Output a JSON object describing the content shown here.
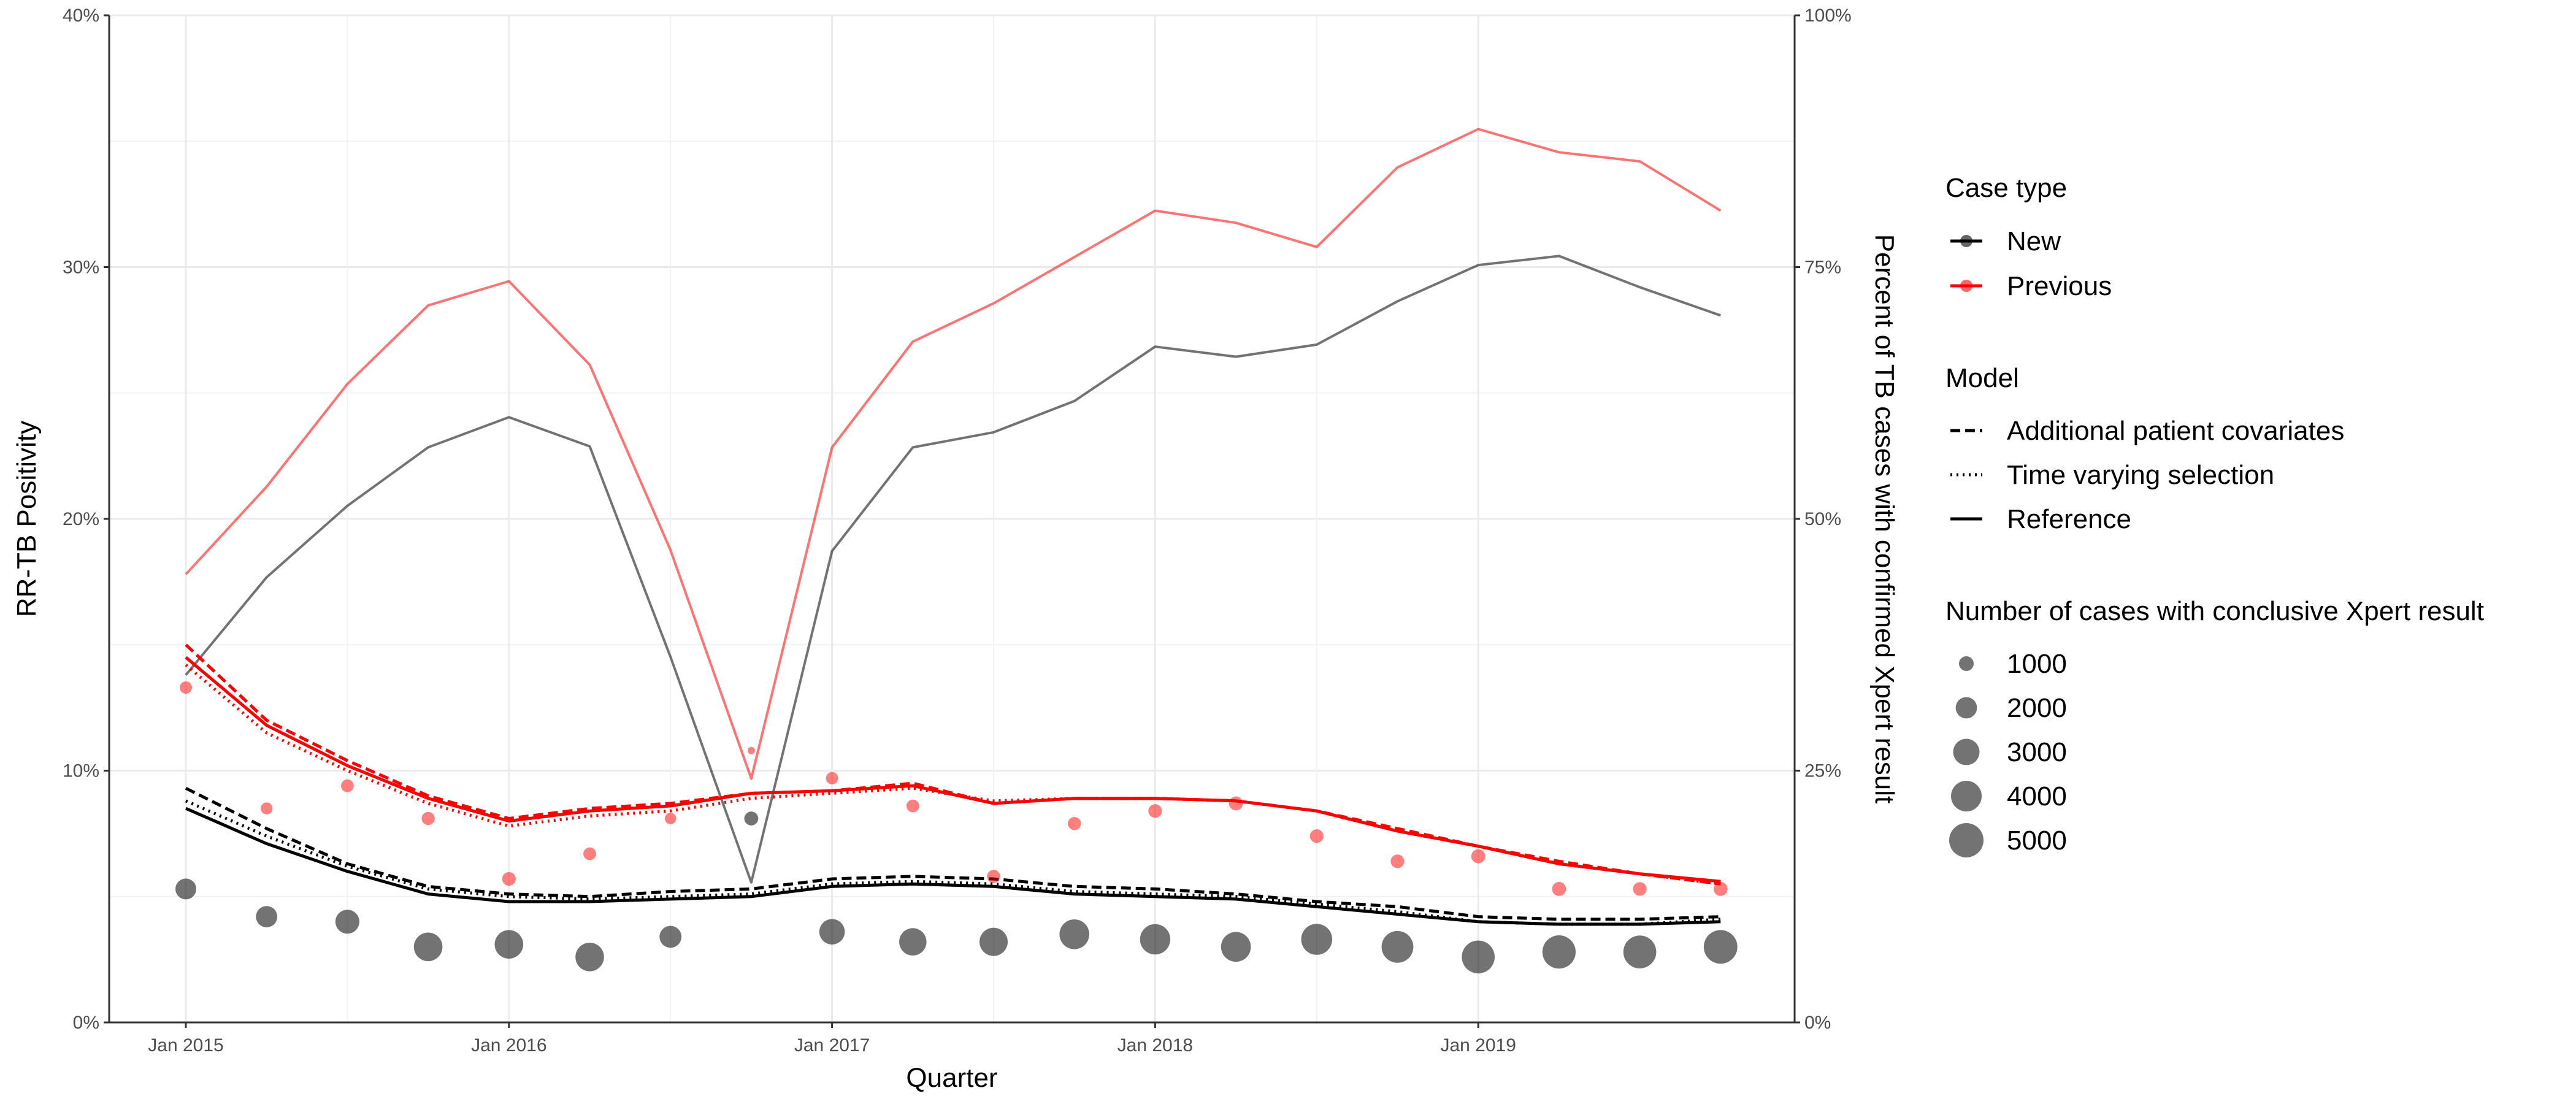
{
  "chart_data": {
    "type": "line",
    "xlabel": "Quarter",
    "ylabel": "RR-TB Positivity",
    "y2label": "Percent of TB cases with confirmed Xpert result",
    "ylim": [
      0,
      40
    ],
    "y2lim": [
      0,
      100
    ],
    "grid": true,
    "legend_position": "right",
    "x": [
      "2015-01",
      "2015-04",
      "2015-07",
      "2015-10",
      "2016-01",
      "2016-04",
      "2016-07",
      "2016-10",
      "2017-01",
      "2017-04",
      "2017-07",
      "2017-10",
      "2018-01",
      "2018-04",
      "2018-07",
      "2018-10",
      "2019-01",
      "2019-04",
      "2019-07",
      "2019-10"
    ],
    "x_ticks": [
      "Jan 2015",
      "Jan 2016",
      "Jan 2017",
      "Jan 2018",
      "Jan 2019"
    ],
    "y_ticks": [
      "0%",
      "10%",
      "20%",
      "30%",
      "40%"
    ],
    "y2_ticks": [
      "0%",
      "25%",
      "50%",
      "75%",
      "100%"
    ],
    "colors": {
      "New": "#000000",
      "Previous": "#ff0000"
    },
    "xpert_confirmed_percent": [
      {
        "name": "New",
        "values": [
          34.5,
          44.2,
          51.3,
          57.1,
          60.1,
          57.2,
          36.3,
          13.9,
          46.8,
          57.1,
          58.6,
          61.7,
          67.1,
          66.1,
          67.3,
          71.6,
          75.2,
          76.1,
          73.0,
          70.2
        ]
      },
      {
        "name": "Previous",
        "values": [
          44.5,
          53.2,
          63.4,
          71.2,
          73.6,
          65.3,
          46.9,
          24.2,
          57.1,
          67.6,
          71.4,
          76.0,
          80.6,
          79.4,
          77.0,
          84.9,
          88.7,
          86.4,
          85.5,
          80.6
        ]
      }
    ],
    "observed_positivity": [
      {
        "name": "New",
        "values": [
          5.3,
          4.2,
          4.0,
          3.0,
          3.1,
          2.6,
          3.4,
          8.1,
          3.6,
          3.2,
          3.2,
          3.5,
          3.3,
          3.0,
          3.3,
          3.0,
          2.6,
          2.8,
          2.8,
          3.0
        ],
        "cases": [
          1900,
          2000,
          2500,
          3500,
          3500,
          3500,
          2100,
          900,
          2800,
          3200,
          3400,
          3800,
          3900,
          3800,
          4100,
          4300,
          4600,
          4700,
          4600,
          4800
        ]
      },
      {
        "name": "Previous",
        "values": [
          13.3,
          8.5,
          9.4,
          8.1,
          5.7,
          6.7,
          8.1,
          10.8,
          9.7,
          8.6,
          5.8,
          7.9,
          8.4,
          8.7,
          7.4,
          6.4,
          6.6,
          5.3,
          5.3,
          5.3
        ],
        "cases": [
          700,
          650,
          750,
          800,
          850,
          750,
          600,
          250,
          700,
          750,
          800,
          800,
          850,
          900,
          850,
          850,
          900,
          900,
          850,
          900
        ]
      }
    ],
    "model_positivity": [
      {
        "case_type": "New",
        "model": "Reference",
        "values": [
          8.5,
          7.1,
          6.0,
          5.1,
          4.8,
          4.8,
          4.9,
          5.0,
          5.4,
          5.5,
          5.4,
          5.1,
          5.0,
          4.9,
          4.6,
          4.3,
          4.0,
          3.9,
          3.9,
          4.0
        ]
      },
      {
        "case_type": "New",
        "model": "Additional patient covariates",
        "values": [
          9.3,
          7.7,
          6.3,
          5.4,
          5.1,
          5.0,
          5.2,
          5.3,
          5.7,
          5.8,
          5.7,
          5.4,
          5.3,
          5.1,
          4.8,
          4.6,
          4.2,
          4.1,
          4.1,
          4.2
        ]
      },
      {
        "case_type": "New",
        "model": "Time varying selection",
        "values": [
          8.8,
          7.4,
          6.2,
          5.3,
          5.0,
          4.9,
          5.0,
          5.1,
          5.5,
          5.6,
          5.5,
          5.2,
          5.1,
          5.0,
          4.7,
          4.4,
          4.0,
          3.9,
          3.9,
          4.1
        ]
      },
      {
        "case_type": "Previous",
        "model": "Reference",
        "values": [
          14.5,
          11.8,
          10.2,
          8.9,
          8.0,
          8.4,
          8.6,
          9.1,
          9.2,
          9.4,
          8.7,
          8.9,
          8.9,
          8.8,
          8.4,
          7.6,
          7.0,
          6.3,
          5.9,
          5.6
        ]
      },
      {
        "case_type": "Previous",
        "model": "Additional patient covariates",
        "values": [
          15.0,
          12.0,
          10.4,
          9.0,
          8.1,
          8.5,
          8.7,
          9.1,
          9.2,
          9.5,
          8.7,
          8.9,
          8.9,
          8.8,
          8.4,
          7.7,
          7.0,
          6.4,
          5.9,
          5.5
        ]
      },
      {
        "case_type": "Previous",
        "model": "Time varying selection",
        "values": [
          14.2,
          11.5,
          10.0,
          8.7,
          7.8,
          8.2,
          8.4,
          8.9,
          9.1,
          9.3,
          8.8,
          8.9,
          8.9,
          8.8,
          8.4,
          7.6,
          7.0,
          6.3,
          5.9,
          5.5
        ]
      }
    ],
    "legend": {
      "case_type": {
        "title": "Case type",
        "entries": [
          "New",
          "Previous"
        ]
      },
      "model": {
        "title": "Model",
        "entries": [
          "Additional patient covariates",
          "Time varying selection",
          "Reference"
        ]
      },
      "size": {
        "title": "Number of cases with conclusive Xpert result",
        "entries": [
          "1000",
          "2000",
          "3000",
          "4000",
          "5000"
        ],
        "values": [
          1000,
          2000,
          3000,
          4000,
          5000
        ]
      }
    }
  }
}
